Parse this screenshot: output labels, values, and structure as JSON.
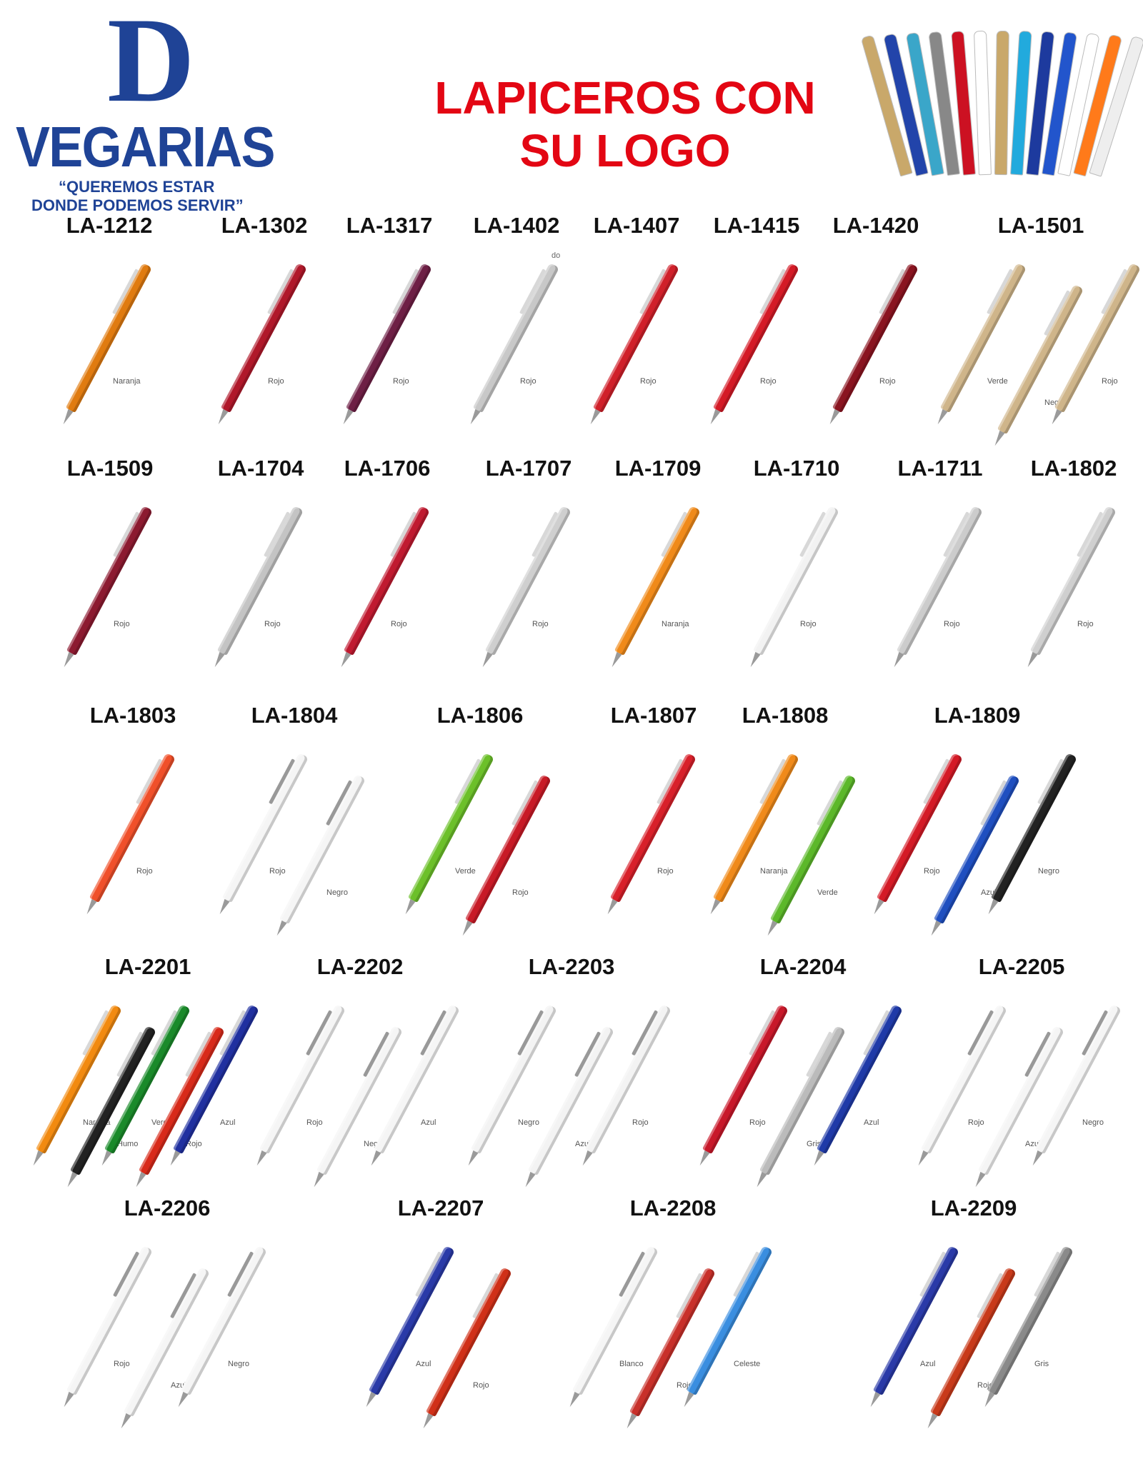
{
  "header": {
    "logo_letter": "D",
    "logo_name": "VEGARIAS",
    "tagline_1": "“QUEREMOS ESTAR",
    "tagline_2": "DONDE PODEMOS SERVIR”",
    "title_line_1": "LAPICEROS CON",
    "title_line_2": "SU LOGO",
    "brand_color": "#1f4396",
    "title_color": "#e30613",
    "fan_colors": [
      "#c9a86a",
      "#2244aa",
      "#3aa6c9",
      "#888888",
      "#cc1122",
      "#ffffff",
      "#c9a86a",
      "#22aadd",
      "#1d3a9e",
      "#2255cc",
      "#ffffff",
      "#ff7a1a",
      "#eeeeee"
    ]
  },
  "stray_text": "do",
  "rows": [
    [
      {
        "code": "LA-1212",
        "pens": [
          {
            "label": "Naranja",
            "color": "#e07b10"
          }
        ]
      },
      {
        "code": "LA-1302",
        "pens": [
          {
            "label": "Rojo",
            "color": "#b0182a"
          }
        ]
      },
      {
        "code": "LA-1317",
        "pens": [
          {
            "label": "Rojo",
            "color": "#6e1f45"
          }
        ]
      },
      {
        "code": "LA-1402",
        "pens": [
          {
            "label": "Rojo",
            "color": "#c8c8c8"
          }
        ]
      },
      {
        "code": "LA-1407",
        "pens": [
          {
            "label": "Rojo",
            "color": "#d0202a"
          }
        ]
      },
      {
        "code": "LA-1415",
        "pens": [
          {
            "label": "Rojo",
            "color": "#d41a26"
          }
        ]
      },
      {
        "code": "LA-1420",
        "pens": [
          {
            "label": "Rojo",
            "color": "#8a1420"
          }
        ]
      },
      {
        "code": "LA-1501",
        "pens": [
          {
            "label": "Verde",
            "color": "#cfb58a"
          },
          {
            "label": "Negro",
            "color": "#cfb58a"
          },
          {
            "label": "Rojo",
            "color": "#cfb58a"
          }
        ]
      }
    ],
    [
      {
        "code": "LA-1509",
        "pens": [
          {
            "label": "Rojo",
            "color": "#8c1a30"
          }
        ]
      },
      {
        "code": "LA-1704",
        "pens": [
          {
            "label": "Rojo",
            "color": "#c4c4c4"
          }
        ]
      },
      {
        "code": "LA-1706",
        "pens": [
          {
            "label": "Rojo",
            "color": "#c01a30"
          }
        ]
      },
      {
        "code": "LA-1707",
        "pens": [
          {
            "label": "Rojo",
            "color": "#cfcfcf"
          }
        ]
      },
      {
        "code": "LA-1709",
        "pens": [
          {
            "label": "Naranja",
            "color": "#f08a1a"
          }
        ]
      },
      {
        "code": "LA-1710",
        "pens": [
          {
            "label": "Rojo",
            "color": "#f2f2f2"
          }
        ]
      },
      {
        "code": "LA-1711",
        "pens": [
          {
            "label": "Rojo",
            "color": "#cccccc"
          }
        ]
      },
      {
        "code": "LA-1802",
        "pens": [
          {
            "label": "Rojo",
            "color": "#cfcfcf"
          }
        ]
      }
    ],
    [
      {
        "code": "LA-1803",
        "pens": [
          {
            "label": "Rojo",
            "color": "#f0502a"
          }
        ]
      },
      {
        "code": "LA-1804",
        "pens": [
          {
            "label": "Rojo",
            "color": "#f5f5f5"
          },
          {
            "label": "Negro",
            "color": "#f5f5f5"
          }
        ]
      },
      {
        "code": "LA-1806",
        "pens": [
          {
            "label": "Verde",
            "color": "#6cc02a"
          },
          {
            "label": "Rojo",
            "color": "#c81a26"
          }
        ]
      },
      {
        "code": "LA-1807",
        "pens": [
          {
            "label": "Rojo",
            "color": "#d8202a"
          }
        ]
      },
      {
        "code": "LA-1808",
        "pens": [
          {
            "label": "Naranja",
            "color": "#f08a1a"
          },
          {
            "label": "Verde",
            "color": "#5cb82a"
          }
        ]
      },
      {
        "code": "LA-1809",
        "pens": [
          {
            "label": "Rojo",
            "color": "#d41a26"
          },
          {
            "label": "Azul",
            "color": "#1f4fc0"
          },
          {
            "label": "Negro",
            "color": "#222222"
          }
        ]
      }
    ],
    [
      {
        "code": "LA-2201",
        "pens": [
          {
            "label": "Naranja",
            "color": "#f28a10"
          },
          {
            "label": "Humo",
            "color": "#222222"
          },
          {
            "label": "Verde",
            "color": "#1a8a2a"
          },
          {
            "label": "Rojo",
            "color": "#d82a1a"
          },
          {
            "label": "Azul",
            "color": "#2030a0"
          }
        ]
      },
      {
        "code": "LA-2202",
        "pens": [
          {
            "label": "Rojo",
            "color": "#f5f5f5"
          },
          {
            "label": "Negro",
            "color": "#f5f5f5"
          },
          {
            "label": "Azul",
            "color": "#f5f5f5"
          }
        ]
      },
      {
        "code": "LA-2203",
        "pens": [
          {
            "label": "Negro",
            "color": "#f3f3f3"
          },
          {
            "label": "Azul",
            "color": "#f3f3f3"
          },
          {
            "label": "Rojo",
            "color": "#f3f3f3"
          }
        ]
      },
      {
        "code": "LA-2204",
        "pens": [
          {
            "label": "Rojo",
            "color": "#c8182a"
          },
          {
            "label": "Gris",
            "color": "#bbbbbb"
          },
          {
            "label": "Azul",
            "color": "#1f3aa8"
          }
        ]
      },
      {
        "code": "LA-2205",
        "pens": [
          {
            "label": "Rojo",
            "color": "#f5f5f5"
          },
          {
            "label": "Azul",
            "color": "#f5f5f5"
          },
          {
            "label": "Negro",
            "color": "#f5f5f5"
          }
        ]
      }
    ],
    [
      {
        "code": "LA-2206",
        "pens": [
          {
            "label": "Rojo",
            "color": "#f5f5f5"
          },
          {
            "label": "Azul",
            "color": "#f5f5f5"
          },
          {
            "label": "Negro",
            "color": "#f5f5f5"
          }
        ]
      },
      {
        "code": "LA-2207",
        "pens": [
          {
            "label": "Azul",
            "color": "#2a3aa8"
          },
          {
            "label": "Rojo",
            "color": "#d03018"
          }
        ]
      },
      {
        "code": "LA-2208",
        "pens": [
          {
            "label": "Blanco",
            "color": "#f5f5f5"
          },
          {
            "label": "Rojo",
            "color": "#c8302a"
          },
          {
            "label": "Celeste",
            "color": "#3a8ee0"
          }
        ]
      },
      {
        "code": "LA-2209",
        "pens": [
          {
            "label": "Azul",
            "color": "#2a3aa8"
          },
          {
            "label": "Rojo",
            "color": "#c83a1a"
          },
          {
            "label": "Gris",
            "color": "#8a8a8a"
          }
        ]
      }
    ]
  ]
}
